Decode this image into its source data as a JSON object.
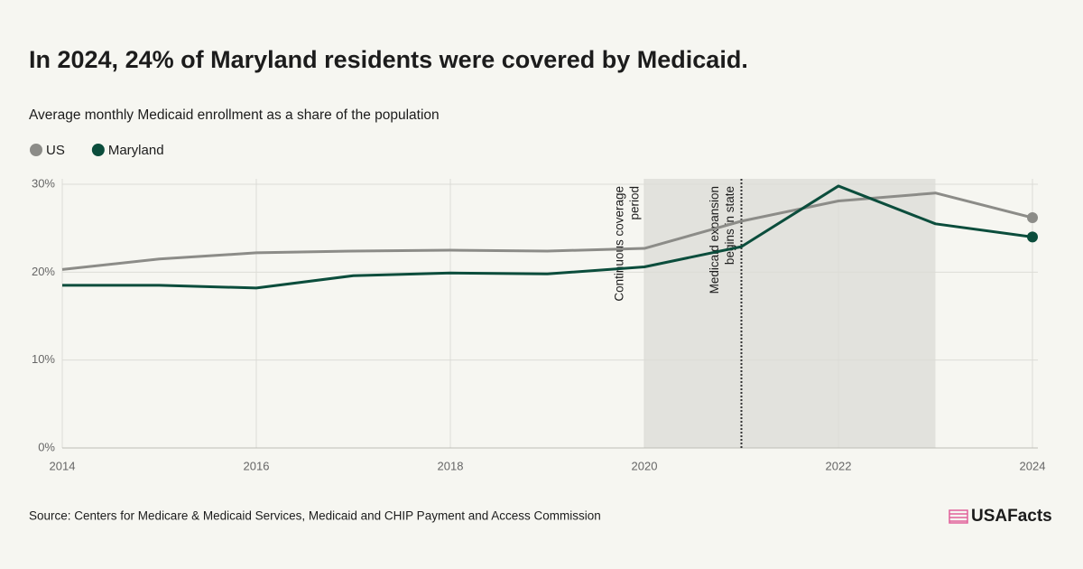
{
  "chart_data": {
    "type": "line",
    "title": "In 2024, 24% of Maryland residents were covered by Medicaid.",
    "subtitle": "Average monthly Medicaid enrollment as a share of the population",
    "x": [
      2014,
      2015,
      2016,
      2017,
      2018,
      2019,
      2020,
      2021,
      2022,
      2023,
      2024
    ],
    "series": [
      {
        "name": "US",
        "color": "#8c8c88",
        "values": [
          20.3,
          21.5,
          22.2,
          22.4,
          22.5,
          22.4,
          22.7,
          25.8,
          28.1,
          29.0,
          26.2
        ]
      },
      {
        "name": "Maryland",
        "color": "#0b4d3c",
        "values": [
          18.5,
          18.5,
          18.2,
          19.6,
          19.9,
          19.8,
          20.6,
          22.9,
          29.8,
          25.5,
          24
        ]
      }
    ],
    "xlim": [
      2014,
      2024
    ],
    "xticks": [
      2014,
      2016,
      2018,
      2020,
      2022,
      2024
    ],
    "ylim": [
      0,
      30
    ],
    "yticks": [
      {
        "value": 0,
        "label": "0%"
      },
      {
        "value": 10,
        "label": "10%"
      },
      {
        "value": 20,
        "label": "20%"
      },
      {
        "value": 30,
        "label": "30%"
      }
    ],
    "grid": true,
    "shaded_period": {
      "range": [
        2020,
        2023
      ],
      "label": [
        "Continuous coverage",
        "period"
      ]
    },
    "reference_line": {
      "x": 2021,
      "label": [
        "Medicaid expansion",
        "begins in state"
      ]
    },
    "source": "Source: Centers for Medicare & Medicaid Services, Medicaid and CHIP Payment and Access Commission",
    "brand": "USAFacts"
  }
}
